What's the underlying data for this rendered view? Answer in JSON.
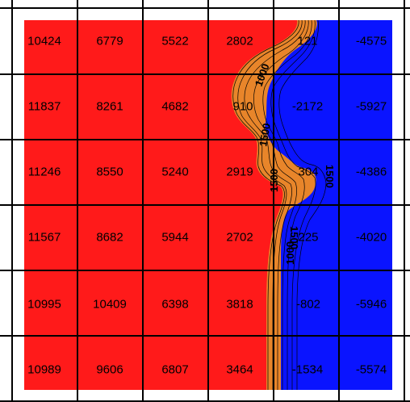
{
  "chart_data": {
    "type": "heatmap",
    "rows": [
      [
        10424,
        6779,
        5522,
        2802,
        121,
        -4575
      ],
      [
        11837,
        8261,
        4682,
        910,
        -2172,
        -5927
      ],
      [
        11246,
        8550,
        5240,
        2919,
        304,
        -4386
      ],
      [
        11567,
        8682,
        5944,
        2702,
        225,
        -4020
      ],
      [
        10995,
        10409,
        6398,
        3818,
        -802,
        -5946
      ],
      [
        10989,
        9606,
        6807,
        3464,
        -1534,
        -5574
      ]
    ],
    "cell_labels": [
      [
        "10424",
        "6779",
        "5522",
        "2802",
        "121",
        "-4575"
      ],
      [
        "11837",
        "8261",
        "4682",
        "910",
        "-2172",
        "-5927"
      ],
      [
        "11246",
        "8550",
        "5240",
        "2919",
        "304",
        "-4386"
      ],
      [
        "11567",
        "8682",
        "5944",
        "2702",
        "225",
        "-4020"
      ],
      [
        "10995",
        "10409",
        "6398",
        "3818",
        "-802",
        "-5946"
      ],
      [
        "10989",
        "9606",
        "6807",
        "3464",
        "-1534",
        "-5574"
      ]
    ],
    "contour_labels": [
      "1000",
      "1500",
      "1500",
      "1500",
      "1500",
      "1000"
    ],
    "colors": {
      "high": "#ff1a1a",
      "mid": "#e8852a",
      "mid_light": "#f2a35a",
      "low": "#0a14ff",
      "grid": "#000000",
      "contour": "#000000"
    },
    "grid": true
  }
}
